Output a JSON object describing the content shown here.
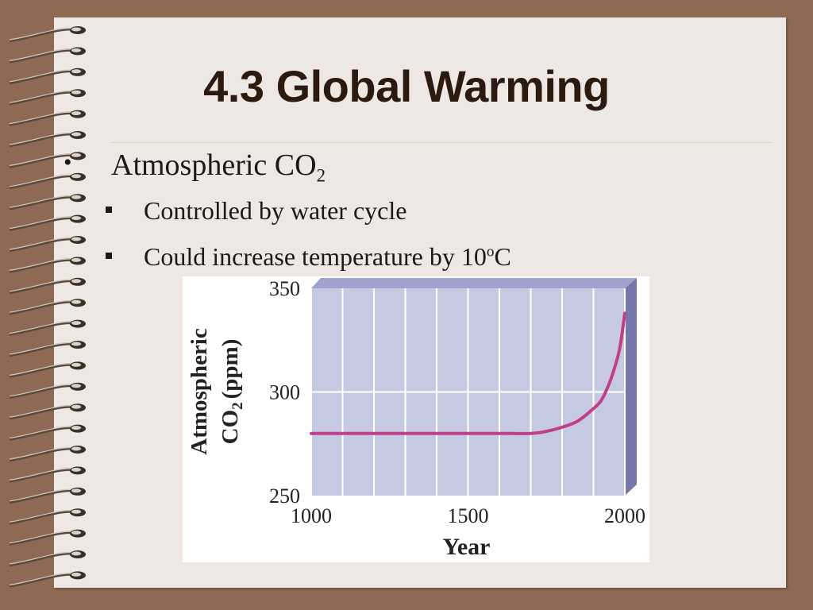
{
  "slide": {
    "title": "4.3 Global Warming",
    "bullet": {
      "marker": "•",
      "text_main": "Atmospheric CO",
      "text_sub": "2"
    },
    "subbullets": [
      {
        "text": "Controlled by water cycle"
      },
      {
        "text_main": "Could increase temperature by 10",
        "text_sup": "o",
        "text_end": "C"
      }
    ]
  },
  "colors": {
    "background": "#8e6a55",
    "paper": "#ede8e3",
    "title": "#2b1a0f",
    "plot_fill": "#c5c9e1",
    "plot_top": "#9fa2cc",
    "plot_side": "#7677ab",
    "line": "#c23d8a"
  },
  "chart_data": {
    "type": "line",
    "xlabel": "Year",
    "ylabel_main": "Atmospheric",
    "ylabel_co": "CO",
    "ylabel_sub": "2",
    "ylabel_unit": "(ppm)",
    "xlim": [
      1000,
      2000
    ],
    "ylim": [
      250,
      350
    ],
    "x_ticks": [
      "1000",
      "1500",
      "2000"
    ],
    "y_ticks": [
      "350",
      "300",
      "250"
    ],
    "x_tick_values": [
      1000,
      1500,
      2000
    ],
    "y_tick_values": [
      350,
      300,
      250
    ],
    "grid": true,
    "x_grid": [
      1000,
      1100,
      1200,
      1300,
      1400,
      1500,
      1600,
      1700,
      1800,
      1900,
      2000
    ],
    "y_grid": [
      300
    ],
    "series": [
      {
        "x": [
          1000,
          1100,
          1200,
          1300,
          1400,
          1500,
          1600,
          1700,
          1750,
          1800,
          1850,
          1900,
          1925,
          1950,
          1970,
          1985,
          2000
        ],
        "values": [
          280,
          280,
          280,
          280,
          280,
          280,
          280,
          280,
          281,
          283,
          286,
          292,
          296,
          304,
          313,
          322,
          338
        ]
      }
    ]
  }
}
